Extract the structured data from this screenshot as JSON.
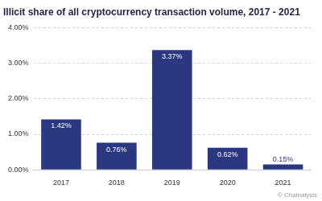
{
  "chart_data": {
    "type": "bar",
    "title": "Illicit share of all cryptocurrency transaction volume, 2017 - 2021",
    "categories": [
      "2017",
      "2018",
      "2019",
      "2020",
      "2021"
    ],
    "values": [
      1.42,
      0.76,
      3.37,
      0.62,
      0.15
    ],
    "value_labels": [
      "1.42%",
      "0.76%",
      "3.37%",
      "0.62%",
      "0.15%"
    ],
    "color": "#2b3781",
    "ylim": [
      0,
      4
    ],
    "yticks": [
      {
        "value": 0,
        "label": "0.00%"
      },
      {
        "value": 1,
        "label": "1.00%"
      },
      {
        "value": 2,
        "label": "2.00%"
      },
      {
        "value": 3,
        "label": "3.00%"
      },
      {
        "value": 4,
        "label": "4.00%"
      }
    ],
    "grid": true,
    "data_labels": true,
    "annotations": [
      "© Chainalysis"
    ]
  }
}
